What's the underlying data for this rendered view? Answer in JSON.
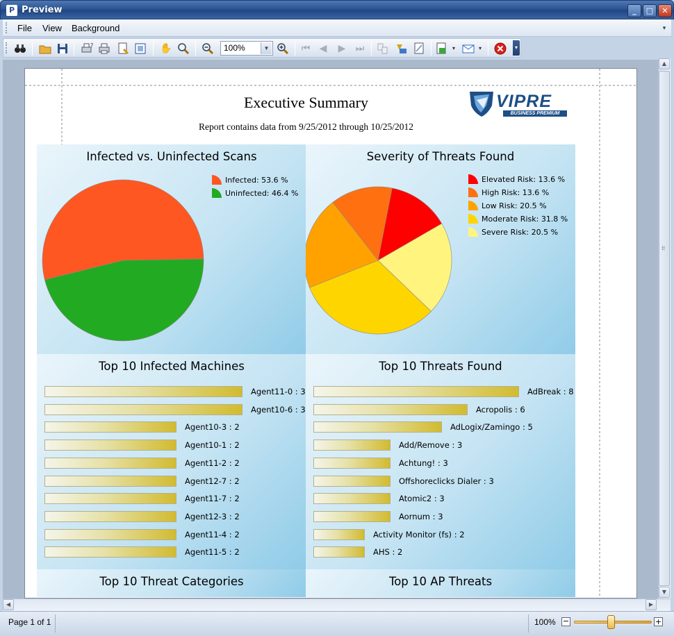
{
  "window": {
    "title": "Preview",
    "icon": "preview-app-icon"
  },
  "menu": {
    "items": [
      "File",
      "View",
      "Background"
    ]
  },
  "toolbar": {
    "zoom_value": "100%"
  },
  "report": {
    "title": "Executive Summary",
    "subtitle": "Report contains data from 9/25/2012 through 10/25/2012",
    "logo_text": "VIPRE",
    "logo_subtext": "BUSINESS PREMIUM"
  },
  "status": {
    "page": "Page 1 of 1",
    "zoom": "100%",
    "zoom_slider_fraction": 0.5
  },
  "colors": {
    "infected": "#ff5722",
    "uninfected": "#22aa22",
    "elevated": "#ff0000",
    "high": "#ff7011",
    "low": "#ffa200",
    "moderate": "#ffd500",
    "severe": "#fff57e",
    "panel": "#c5e4f3"
  },
  "chart_data": [
    {
      "type": "pie",
      "title": "Infected vs. Uninfected Scans",
      "labels": [
        "Infected",
        "Uninfected"
      ],
      "legend": [
        "Infected: 53.6 %",
        "Uninfected: 46.4 %"
      ],
      "values": [
        53.6,
        46.4
      ],
      "colors": [
        "#ff5722",
        "#22aa22"
      ],
      "legend_position": "top-right"
    },
    {
      "type": "pie",
      "title": "Severity of Threats Found",
      "labels": [
        "Elevated Risk",
        "High Risk",
        "Low Risk",
        "Moderate Risk",
        "Severe Risk"
      ],
      "legend": [
        "Elevated Risk: 13.6 %",
        "High Risk: 13.6 %",
        "Low Risk: 20.5 %",
        "Moderate Risk: 31.8 %",
        "Severe Risk: 20.5 %"
      ],
      "values": [
        13.6,
        13.6,
        20.5,
        31.8,
        20.5
      ],
      "colors": [
        "#ff0000",
        "#ff7011",
        "#ffa200",
        "#ffd500",
        "#fff57e"
      ],
      "legend_position": "top-right"
    },
    {
      "type": "bar",
      "orientation": "horizontal",
      "title": "Top 10 Infected Machines",
      "categories": [
        "Agent11-0",
        "Agent10-6",
        "Agent10-3",
        "Agent10-1",
        "Agent11-2",
        "Agent12-7",
        "Agent11-7",
        "Agent12-3",
        "Agent11-4",
        "Agent11-5"
      ],
      "labels": [
        "Agent11-0 : 3",
        "Agent10-6 : 3",
        "Agent10-3 : 2",
        "Agent10-1 : 2",
        "Agent11-2 : 2",
        "Agent12-7 : 2",
        "Agent11-7 : 2",
        "Agent12-3 : 2",
        "Agent11-4 : 2",
        "Agent11-5 : 2"
      ],
      "values": [
        3,
        3,
        2,
        2,
        2,
        2,
        2,
        2,
        2,
        2
      ],
      "xlim": [
        0,
        3
      ]
    },
    {
      "type": "bar",
      "orientation": "horizontal",
      "title": "Top 10 Threats Found",
      "categories": [
        "AdBreak",
        "Acropolis",
        "AdLogix/Zamingo",
        "Add/Remove",
        "Achtung!",
        "Offshoreclicks Dialer",
        "Atomic2",
        "Aornum",
        "Activity Monitor (fs)",
        "AHS"
      ],
      "labels": [
        "AdBreak : 8",
        "Acropolis : 6",
        "AdLogix/Zamingo : 5",
        "Add/Remove : 3",
        "Achtung! : 3",
        "Offshoreclicks Dialer : 3",
        "Atomic2 : 3",
        "Aornum : 3",
        "Activity Monitor (fs) : 2",
        "AHS : 2"
      ],
      "values": [
        8,
        6,
        5,
        3,
        3,
        3,
        3,
        3,
        2,
        2
      ],
      "xlim": [
        0,
        8
      ]
    },
    {
      "type": "bar",
      "title": "Top 10 Threat Categories"
    },
    {
      "type": "bar",
      "title": "Top 10 AP Threats"
    }
  ]
}
